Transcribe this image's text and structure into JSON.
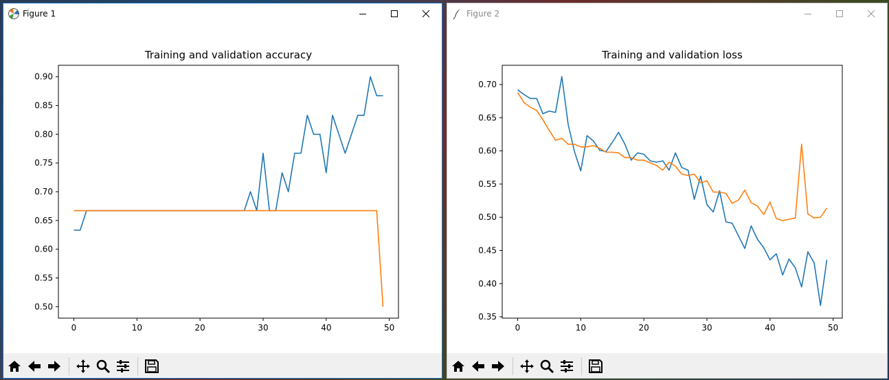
{
  "windows": [
    {
      "title": "Figure 1",
      "icon": "matplotlib-icon"
    },
    {
      "title": "Figure 2",
      "icon": "feather-icon"
    }
  ],
  "toolbar": {
    "buttons": [
      "home-icon",
      "back-arrow-icon",
      "forward-arrow-icon",
      "pan-icon",
      "zoom-icon",
      "configure-subplots-icon",
      "save-icon"
    ]
  },
  "colors": {
    "train": "#1f77b4",
    "val": "#ff7f0e"
  },
  "chart_data": [
    {
      "type": "line",
      "title": "Training and validation accuracy",
      "xlabel": "",
      "ylabel": "",
      "xlim": [
        -2.45,
        51.45
      ],
      "ylim": [
        0.48,
        0.92
      ],
      "xticks": [
        0,
        10,
        20,
        30,
        40,
        50
      ],
      "yticks": [
        0.5,
        0.55,
        0.6,
        0.65,
        0.7,
        0.75,
        0.8,
        0.85,
        0.9
      ],
      "ytick_labels": [
        "0.50",
        "0.55",
        "0.60",
        "0.65",
        "0.70",
        "0.75",
        "0.80",
        "0.85",
        "0.90"
      ],
      "xtick_labels": [
        "0",
        "10",
        "20",
        "30",
        "40",
        "50"
      ],
      "grid": false,
      "x": [
        0,
        1,
        2,
        3,
        4,
        5,
        6,
        7,
        8,
        9,
        10,
        11,
        12,
        13,
        14,
        15,
        16,
        17,
        18,
        19,
        20,
        21,
        22,
        23,
        24,
        25,
        26,
        27,
        28,
        29,
        30,
        31,
        32,
        33,
        34,
        35,
        36,
        37,
        38,
        39,
        40,
        41,
        42,
        43,
        44,
        45,
        46,
        47,
        48,
        49
      ],
      "series": [
        {
          "values": [
            0.633,
            0.633,
            0.667,
            0.667,
            0.667,
            0.667,
            0.667,
            0.667,
            0.667,
            0.667,
            0.667,
            0.667,
            0.667,
            0.667,
            0.667,
            0.667,
            0.667,
            0.667,
            0.667,
            0.667,
            0.667,
            0.667,
            0.667,
            0.667,
            0.667,
            0.667,
            0.667,
            0.667,
            0.7,
            0.667,
            0.767,
            0.667,
            0.667,
            0.733,
            0.7,
            0.767,
            0.767,
            0.833,
            0.8,
            0.8,
            0.733,
            0.833,
            0.8,
            0.767,
            0.8,
            0.833,
            0.833,
            0.9,
            0.867,
            0.867
          ]
        },
        {
          "values": [
            0.667,
            0.667,
            0.667,
            0.667,
            0.667,
            0.667,
            0.667,
            0.667,
            0.667,
            0.667,
            0.667,
            0.667,
            0.667,
            0.667,
            0.667,
            0.667,
            0.667,
            0.667,
            0.667,
            0.667,
            0.667,
            0.667,
            0.667,
            0.667,
            0.667,
            0.667,
            0.667,
            0.667,
            0.667,
            0.667,
            0.667,
            0.667,
            0.667,
            0.667,
            0.667,
            0.667,
            0.667,
            0.667,
            0.667,
            0.667,
            0.667,
            0.667,
            0.667,
            0.667,
            0.667,
            0.667,
            0.667,
            0.667,
            0.667,
            0.5
          ]
        }
      ]
    },
    {
      "type": "line",
      "title": "Training and validation loss",
      "xlabel": "",
      "ylabel": "",
      "xlim": [
        -2.45,
        51.45
      ],
      "ylim": [
        0.348,
        0.729
      ],
      "xticks": [
        0,
        10,
        20,
        30,
        40,
        50
      ],
      "yticks": [
        0.35,
        0.4,
        0.45,
        0.5,
        0.55,
        0.6,
        0.65,
        0.7
      ],
      "ytick_labels": [
        "0.35",
        "0.40",
        "0.45",
        "0.50",
        "0.55",
        "0.60",
        "0.65",
        "0.70"
      ],
      "xtick_labels": [
        "0",
        "10",
        "20",
        "30",
        "40",
        "50"
      ],
      "grid": false,
      "x": [
        0,
        1,
        2,
        3,
        4,
        5,
        6,
        7,
        8,
        9,
        10,
        11,
        12,
        13,
        14,
        15,
        16,
        17,
        18,
        19,
        20,
        21,
        22,
        23,
        24,
        25,
        26,
        27,
        28,
        29,
        30,
        31,
        32,
        33,
        34,
        35,
        36,
        37,
        38,
        39,
        40,
        41,
        42,
        43,
        44,
        45,
        46,
        47,
        48,
        49
      ],
      "series": [
        {
          "values": [
            0.692,
            0.685,
            0.679,
            0.679,
            0.656,
            0.66,
            0.658,
            0.712,
            0.64,
            0.599,
            0.57,
            0.623,
            0.615,
            0.601,
            0.599,
            0.613,
            0.628,
            0.61,
            0.586,
            0.597,
            0.595,
            0.585,
            0.583,
            0.585,
            0.571,
            0.597,
            0.575,
            0.571,
            0.527,
            0.562,
            0.519,
            0.508,
            0.54,
            0.493,
            0.491,
            0.472,
            0.453,
            0.487,
            0.467,
            0.454,
            0.436,
            0.445,
            0.413,
            0.437,
            0.424,
            0.395,
            0.448,
            0.431,
            0.367,
            0.436
          ]
        },
        {
          "values": [
            0.688,
            0.673,
            0.666,
            0.661,
            0.647,
            0.631,
            0.616,
            0.619,
            0.61,
            0.61,
            0.606,
            0.606,
            0.608,
            0.604,
            0.598,
            0.598,
            0.597,
            0.59,
            0.59,
            0.586,
            0.586,
            0.582,
            0.578,
            0.571,
            0.583,
            0.577,
            0.565,
            0.563,
            0.565,
            0.552,
            0.555,
            0.538,
            0.538,
            0.536,
            0.521,
            0.526,
            0.541,
            0.522,
            0.517,
            0.504,
            0.523,
            0.498,
            0.495,
            0.497,
            0.499,
            0.61,
            0.505,
            0.499,
            0.5,
            0.514
          ]
        }
      ]
    }
  ]
}
